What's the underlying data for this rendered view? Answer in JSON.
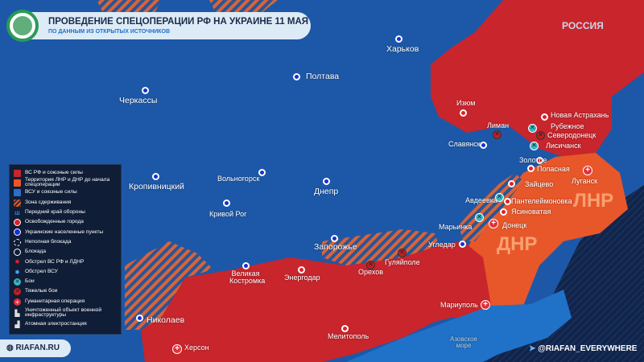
{
  "header": {
    "title": "ПРОВЕДЕНИЕ СПЕЦОПЕРАЦИИ РФ НА УКРАИНЕ 11 МАЯ",
    "subtitle": "ПО ДАННЫМ ИЗ ОТКРЫТЫХ ИСТОЧНИКОВ"
  },
  "colors": {
    "russia_forces": "#c9252c",
    "lnr_dnr": "#e8572a",
    "ukraine": "#1d58a8",
    "sea_dark": "#0f2244",
    "azov": "#1f72c8"
  },
  "legend": [
    {
      "icon": "red-square",
      "label": "ВС РФ и союзные силы"
    },
    {
      "icon": "orange-square",
      "label": "Территория ЛНР и ДНР до начала спецоперации"
    },
    {
      "icon": "blue-square",
      "label": "ВСУ и союзные силы"
    },
    {
      "icon": "hatch-zone",
      "label": "Зона сдерживания"
    },
    {
      "icon": "front-line",
      "label": "Передний край обороны"
    },
    {
      "icon": "red-dot",
      "label": "Освобожденные города"
    },
    {
      "icon": "blue-dot",
      "label": "Украинские населенные пункты"
    },
    {
      "icon": "dashed-circle",
      "label": "Неполная блокада"
    },
    {
      "icon": "circle",
      "label": "Блокада"
    },
    {
      "icon": "red-explosion",
      "label": "Обстрел ВС РФ и ЛДНР"
    },
    {
      "icon": "blue-explosion",
      "label": "Обстрел ВСУ"
    },
    {
      "icon": "fight-icon",
      "label": "Бои"
    },
    {
      "icon": "heavy-fight-icon",
      "label": "Тяжелые бои"
    },
    {
      "icon": "cross-icon",
      "label": "Гуманитарная операция"
    },
    {
      "icon": "factory-icon",
      "label": "Уничтоженный объект военной инфраструктуры"
    },
    {
      "icon": "nuclear-plant-icon",
      "label": "Атомная электростанция"
    }
  ],
  "map": {
    "country_label": "РОССИЯ",
    "regions": {
      "lnr": "ЛНР",
      "dnr": "ДНР"
    },
    "sea": "Азовское море",
    "cities": [
      {
        "name": "Харьков",
        "type": "ua"
      },
      {
        "name": "Полтава",
        "type": "ua"
      },
      {
        "name": "Черкассы",
        "type": "ua"
      },
      {
        "name": "Изюм",
        "type": "ru"
      },
      {
        "name": "Новая Астрахань",
        "type": "ru"
      },
      {
        "name": "Лиман",
        "type": "heavy"
      },
      {
        "name": "Рубежное",
        "type": "fight"
      },
      {
        "name": "Северодонецк",
        "type": "heavy"
      },
      {
        "name": "Лисичанск",
        "type": "fight"
      },
      {
        "name": "Славянск",
        "type": "ua"
      },
      {
        "name": "Золотое",
        "type": "ru"
      },
      {
        "name": "Попасная",
        "type": "ru"
      },
      {
        "name": "Луганск",
        "type": "hum"
      },
      {
        "name": "Зайцево",
        "type": "ru"
      },
      {
        "name": "Авдеевка",
        "type": "fight"
      },
      {
        "name": "Пантелеймоновка",
        "type": "ru"
      },
      {
        "name": "Ясиноватая",
        "type": "ru"
      },
      {
        "name": "Донецк",
        "type": "hum"
      },
      {
        "name": "Марьинка",
        "type": "fight"
      },
      {
        "name": "Кропивницкий",
        "type": "ua"
      },
      {
        "name": "Вольногорск",
        "type": "ua"
      },
      {
        "name": "Днепр",
        "type": "ua"
      },
      {
        "name": "Кривой Рог",
        "type": "ua"
      },
      {
        "name": "Запорожье",
        "type": "ua"
      },
      {
        "name": "Угледар",
        "type": "ua"
      },
      {
        "name": "Гуляйполе",
        "type": "heavy"
      },
      {
        "name": "Орехов",
        "type": "heavy"
      },
      {
        "name": "Энергодар",
        "type": "ru"
      },
      {
        "name": "Великая Костромка",
        "type": "ua"
      },
      {
        "name": "Николаев",
        "type": "ua"
      },
      {
        "name": "Херсон",
        "type": "hum"
      },
      {
        "name": "Мелитополь",
        "type": "ru"
      },
      {
        "name": "Мариуполь",
        "type": "hum"
      }
    ]
  },
  "footer": {
    "site": "RIAFAN.RU",
    "telegram": "@RIAFAN_EVERYWHERE"
  }
}
